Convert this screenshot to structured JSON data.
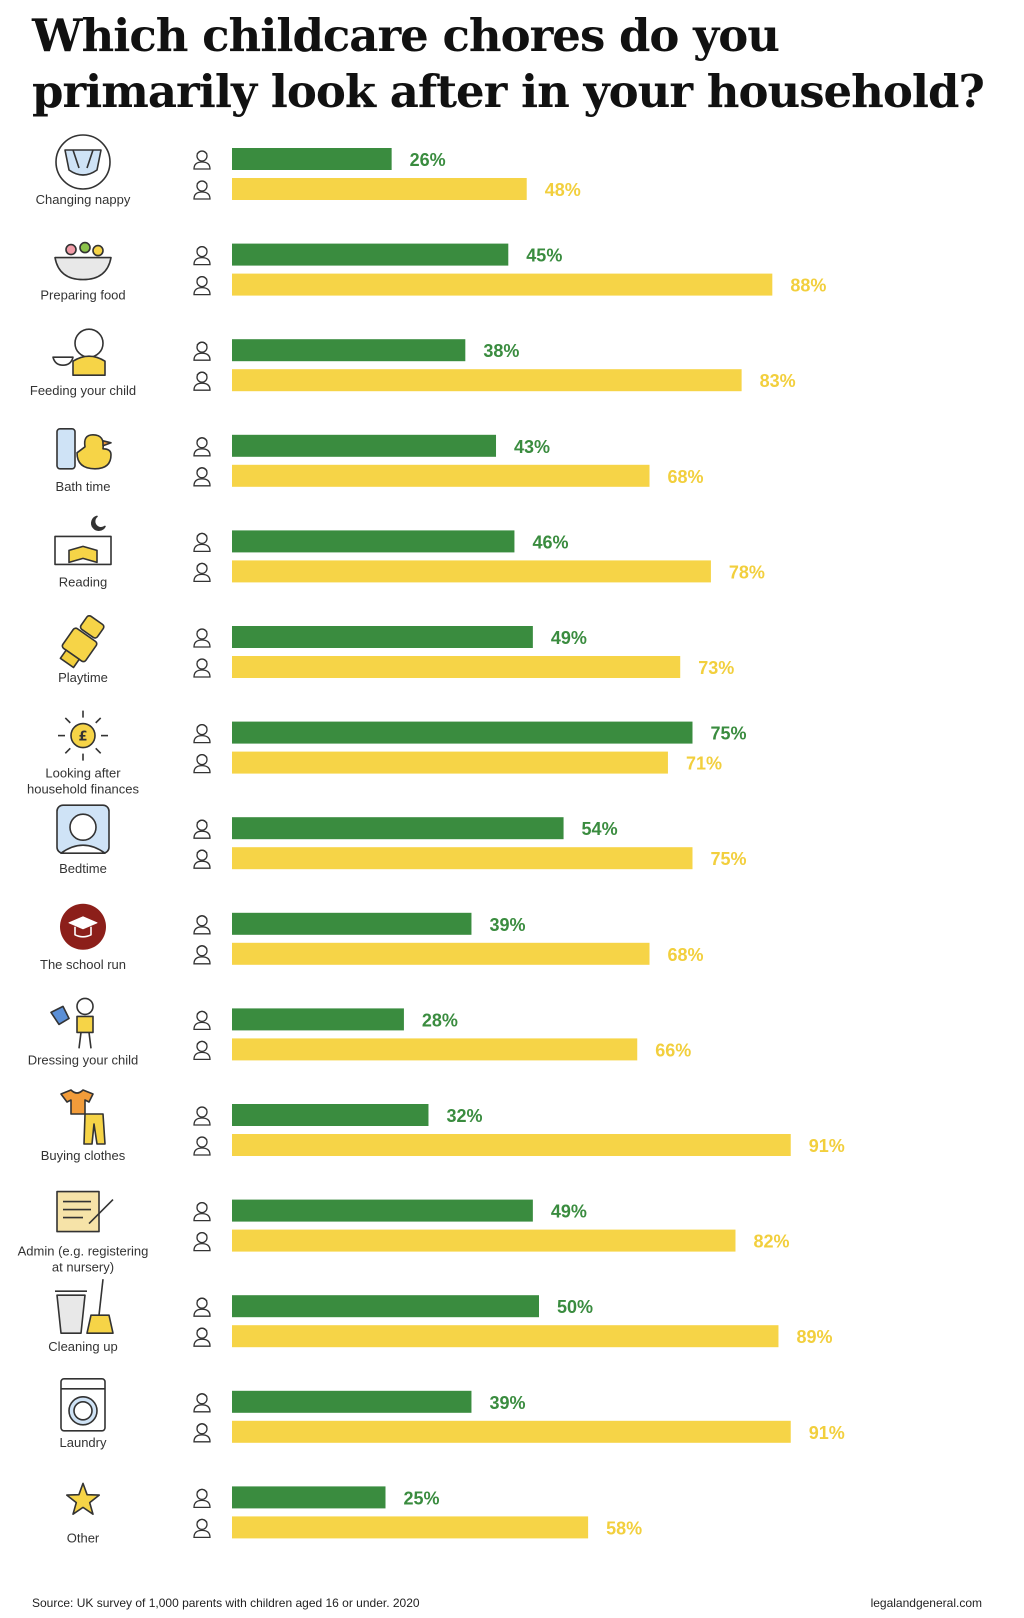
{
  "colors": {
    "male": "#3a8c3f",
    "female": "#f6d447",
    "male_text": "#3a8c3f",
    "female_text": "#f2cf3d"
  },
  "chart_data": {
    "type": "bar",
    "orientation": "horizontal",
    "title": "Which childcare chores do you primarily look after in your household?",
    "categories": [
      [
        "Changing nappy"
      ],
      [
        "Preparing food"
      ],
      [
        "Feeding your child"
      ],
      [
        "Bath time"
      ],
      [
        "Reading"
      ],
      [
        "Playtime"
      ],
      [
        "Looking after",
        "household finances"
      ],
      [
        "Bedtime"
      ],
      [
        "The school run"
      ],
      [
        "Dressing your child"
      ],
      [
        "Buying clothes"
      ],
      [
        "Admin (e.g. registering",
        "at nursery)"
      ],
      [
        "Cleaning up"
      ],
      [
        "Laundry"
      ],
      [
        "Other"
      ]
    ],
    "series": [
      {
        "values": [
          26,
          45,
          38,
          43,
          46,
          49,
          75,
          54,
          39,
          28,
          32,
          49,
          50,
          39,
          25
        ]
      },
      {
        "values": [
          48,
          88,
          83,
          68,
          78,
          73,
          71,
          75,
          68,
          66,
          91,
          82,
          89,
          91,
          58
        ]
      }
    ],
    "value_suffix": "%",
    "icons": [
      "nappy-icon",
      "food-bowl-icon",
      "baby-feeding-icon",
      "rubber-duck-icon",
      "reading-book-icon",
      "toy-robot-icon",
      "coin-pound-icon",
      "sleeping-baby-icon",
      "school-hat-icon",
      "dressing-child-icon",
      "clothes-icon",
      "admin-form-icon",
      "trash-broom-icon",
      "washing-machine-icon",
      "star-icon"
    ]
  },
  "footer": {
    "source": "Source: UK survey of 1,000 parents with children aged 16 or under. 2020",
    "site": "legalandgeneral.com"
  }
}
